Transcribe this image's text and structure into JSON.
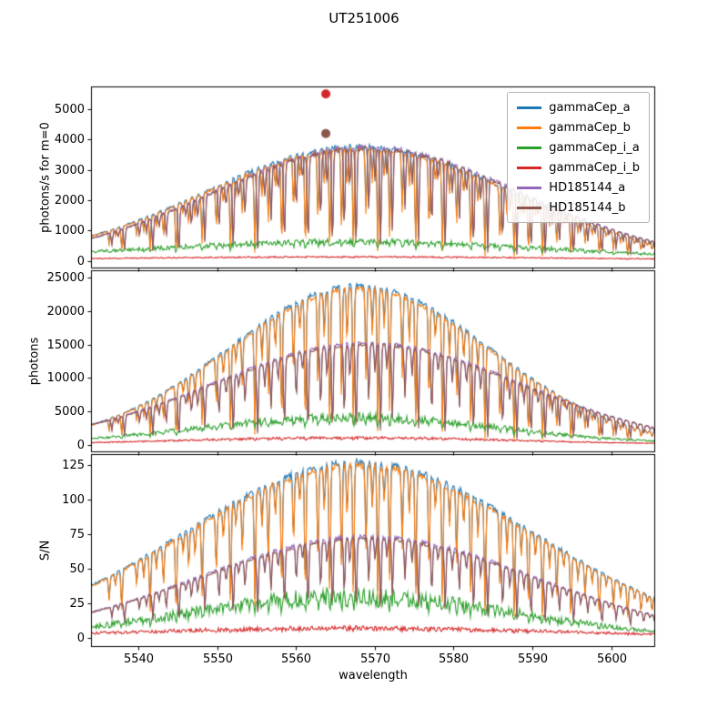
{
  "figure": {
    "title": "UT251006",
    "background": "#ffffff"
  },
  "chart_data": [
    {
      "type": "line",
      "title": "UT251006",
      "ylabel": "photons/s for m=0",
      "xlim": [
        5534.0,
        5605.6
      ],
      "ylim": [
        -250,
        5750
      ],
      "xticks": [
        5540,
        5550,
        5560,
        5570,
        5580,
        5590,
        5600
      ],
      "yticks": [
        0,
        1000,
        2000,
        3000,
        4000,
        5000
      ],
      "legend_position": "upper right",
      "series": [
        {
          "name": "gammaCep_a",
          "color": "#1f77b4",
          "center": 5568,
          "sigma": 27.5,
          "peak": 3780,
          "left_edge": 900,
          "right_edge": 620,
          "noise": 0.02,
          "line_depth": 0.9,
          "line_offset": 0
        },
        {
          "name": "gammaCep_b",
          "color": "#ff7f0e",
          "center": 5568,
          "sigma": 27.5,
          "peak": 3700,
          "left_edge": 880,
          "right_edge": 600,
          "noise": 0.02,
          "line_depth": 1.0,
          "line_offset": 0
        },
        {
          "name": "gammaCep_i_a",
          "color": "#2ca02c",
          "center": 5567,
          "sigma": 38,
          "peak": 640,
          "left_edge": 300,
          "right_edge": 230,
          "noise": 0.16,
          "line_depth": 0.35,
          "line_offset": 0
        },
        {
          "name": "gammaCep_i_b",
          "color": "#d62728",
          "center": 5567,
          "sigma": 45,
          "peak": 135,
          "left_edge": 78,
          "right_edge": 65,
          "noise": 0.18,
          "line_depth": 0.25,
          "line_offset": 0
        },
        {
          "name": "HD185144_a",
          "color": "#9467bd",
          "center": 5569,
          "sigma": 27.5,
          "peak": 3760,
          "left_edge": 890,
          "right_edge": 610,
          "noise": 0.02,
          "line_depth": 0.92,
          "line_offset": 0.35
        },
        {
          "name": "HD185144_b",
          "color": "#8c564b",
          "center": 5569,
          "sigma": 27.5,
          "peak": 3700,
          "left_edge": 880,
          "right_edge": 600,
          "noise": 0.02,
          "line_depth": 0.95,
          "line_offset": 0.35
        }
      ],
      "markers": [
        {
          "series": "gammaCep_i_b",
          "color": "#d62728",
          "x": 5563.8,
          "y": 5500
        },
        {
          "series": "HD185144_b",
          "color": "#8c564b",
          "x": 5563.8,
          "y": 4200
        }
      ]
    },
    {
      "type": "line",
      "ylabel": "photons",
      "xlim": [
        5534.0,
        5605.6
      ],
      "ylim": [
        -1150,
        26150
      ],
      "xticks": [
        5540,
        5550,
        5560,
        5570,
        5580,
        5590,
        5600
      ],
      "yticks": [
        0,
        5000,
        10000,
        15000,
        20000,
        25000
      ],
      "series": [
        {
          "name": "gammaCep_a",
          "color": "#1f77b4",
          "center": 5568,
          "sigma": 23.5,
          "peak": 23900,
          "left_edge": 3300,
          "right_edge": 1850,
          "noise": 0.015,
          "line_depth": 0.9,
          "line_offset": 0
        },
        {
          "name": "gammaCep_b",
          "color": "#ff7f0e",
          "center": 5568,
          "sigma": 23.5,
          "peak": 23400,
          "left_edge": 3250,
          "right_edge": 1810,
          "noise": 0.015,
          "line_depth": 1.0,
          "line_offset": 0
        },
        {
          "name": "gammaCep_i_a",
          "color": "#2ca02c",
          "center": 5567,
          "sigma": 27,
          "peak": 4150,
          "left_edge": 930,
          "right_edge": 540,
          "noise": 0.16,
          "line_depth": 0.35,
          "line_offset": 0
        },
        {
          "name": "gammaCep_i_b",
          "color": "#d62728",
          "center": 5567,
          "sigma": 30,
          "peak": 1050,
          "left_edge": 310,
          "right_edge": 200,
          "noise": 0.2,
          "line_depth": 0.25,
          "line_offset": 0
        },
        {
          "name": "HD185144_a",
          "color": "#9467bd",
          "center": 5569,
          "sigma": 27.5,
          "peak": 15300,
          "left_edge": 3320,
          "right_edge": 2600,
          "noise": 0.015,
          "line_depth": 0.92,
          "line_offset": 0.35
        },
        {
          "name": "HD185144_b",
          "color": "#8c564b",
          "center": 5569,
          "sigma": 27.5,
          "peak": 15000,
          "left_edge": 3260,
          "right_edge": 2550,
          "noise": 0.015,
          "line_depth": 0.95,
          "line_offset": 0.35
        }
      ]
    },
    {
      "type": "line",
      "ylabel": "S/N",
      "xlabel": "wavelength",
      "xlim": [
        5534.0,
        5605.6
      ],
      "ylim": [
        -6.4,
        132.9
      ],
      "xticks": [
        5540,
        5550,
        5560,
        5570,
        5580,
        5590,
        5600
      ],
      "yticks": [
        0,
        25,
        50,
        75,
        100,
        125
      ],
      "series": [
        {
          "name": "gammaCep_a",
          "color": "#1f77b4",
          "center": 5568,
          "sigma": 31,
          "peak": 127,
          "left_edge": 41,
          "right_edge": 29,
          "noise": 0.02,
          "line_depth": 0.8,
          "line_offset": 0
        },
        {
          "name": "gammaCep_b",
          "color": "#ff7f0e",
          "center": 5568,
          "sigma": 31,
          "peak": 124.5,
          "left_edge": 40,
          "right_edge": 28,
          "noise": 0.02,
          "line_depth": 0.85,
          "line_offset": 0
        },
        {
          "name": "gammaCep_i_a",
          "color": "#2ca02c",
          "center": 5567,
          "sigma": 29,
          "peak": 30,
          "left_edge": 8.2,
          "right_edge": 5.1,
          "noise": 0.22,
          "line_depth": 0.3,
          "line_offset": 0
        },
        {
          "name": "gammaCep_i_b",
          "color": "#d62728",
          "center": 5567,
          "sigma": 40,
          "peak": 7.2,
          "left_edge": 3.5,
          "right_edge": 3.0,
          "noise": 0.25,
          "line_depth": 0.2,
          "line_offset": 0
        },
        {
          "name": "HD185144_a",
          "color": "#9467bd",
          "center": 5569,
          "sigma": 30,
          "peak": 73.5,
          "left_edge": 20,
          "right_edge": 17,
          "noise": 0.02,
          "line_depth": 0.72,
          "line_offset": 0.35
        },
        {
          "name": "HD185144_b",
          "color": "#8c564b",
          "center": 5569,
          "sigma": 30,
          "peak": 72,
          "left_edge": 20,
          "right_edge": 16.5,
          "noise": 0.02,
          "line_depth": 0.75,
          "line_offset": 0.35
        }
      ]
    }
  ],
  "absorption_lines": [
    [
      5536.3,
      0.45
    ],
    [
      5537.1,
      0.2
    ],
    [
      5537.9,
      0.7
    ],
    [
      5539.8,
      0.35
    ],
    [
      5540.7,
      0.3
    ],
    [
      5541.5,
      0.8
    ],
    [
      5542.3,
      0.25
    ],
    [
      5543.2,
      0.5
    ],
    [
      5544.8,
      0.9
    ],
    [
      5545.7,
      0.2
    ],
    [
      5546.4,
      0.4
    ],
    [
      5547.2,
      0.3
    ],
    [
      5548.1,
      0.75
    ],
    [
      5549.9,
      0.55
    ],
    [
      5550.8,
      0.25
    ],
    [
      5551.7,
      0.88
    ],
    [
      5552.4,
      0.2
    ],
    [
      5553.2,
      0.45
    ],
    [
      5554.8,
      0.92
    ],
    [
      5555.7,
      0.3
    ],
    [
      5556.5,
      0.6
    ],
    [
      5557.4,
      0.25
    ],
    [
      5558.2,
      0.85
    ],
    [
      5559.7,
      0.5
    ],
    [
      5560.5,
      0.2
    ],
    [
      5561.2,
      0.9
    ],
    [
      5562.8,
      0.65
    ],
    [
      5563.6,
      0.3
    ],
    [
      5564.3,
      0.93
    ],
    [
      5565.8,
      0.75
    ],
    [
      5566.5,
      0.35
    ],
    [
      5567.3,
      0.95
    ],
    [
      5568.9,
      0.6
    ],
    [
      5569.7,
      0.3
    ],
    [
      5570.4,
      0.94
    ],
    [
      5571.2,
      0.25
    ],
    [
      5571.9,
      0.8
    ],
    [
      5573.5,
      0.55
    ],
    [
      5574.4,
      0.3
    ],
    [
      5575.2,
      0.9
    ],
    [
      5576.9,
      0.7
    ],
    [
      5577.7,
      0.2
    ],
    [
      5578.6,
      0.93
    ],
    [
      5579.5,
      0.3
    ],
    [
      5580.4,
      0.6
    ],
    [
      5581.3,
      0.25
    ],
    [
      5582.2,
      0.88
    ],
    [
      5583.1,
      0.3
    ],
    [
      5584.0,
      0.95
    ],
    [
      5585.9,
      0.75
    ],
    [
      5586.8,
      0.35
    ],
    [
      5587.7,
      0.96
    ],
    [
      5588.6,
      0.3
    ],
    [
      5589.5,
      0.85
    ],
    [
      5590.4,
      0.25
    ],
    [
      5591.3,
      0.94
    ],
    [
      5592.2,
      0.3
    ],
    [
      5593.1,
      0.65
    ],
    [
      5594.0,
      0.2
    ],
    [
      5594.9,
      0.9
    ],
    [
      5595.8,
      0.3
    ],
    [
      5596.7,
      0.55
    ],
    [
      5597.6,
      0.25
    ],
    [
      5598.5,
      0.82
    ],
    [
      5599.4,
      0.2
    ],
    [
      5600.3,
      0.6
    ],
    [
      5601.2,
      0.3
    ],
    [
      5602.1,
      0.75
    ],
    [
      5603.0,
      0.25
    ],
    [
      5603.8,
      0.5
    ],
    [
      5604.6,
      0.2
    ],
    [
      5605.2,
      0.4
    ]
  ]
}
